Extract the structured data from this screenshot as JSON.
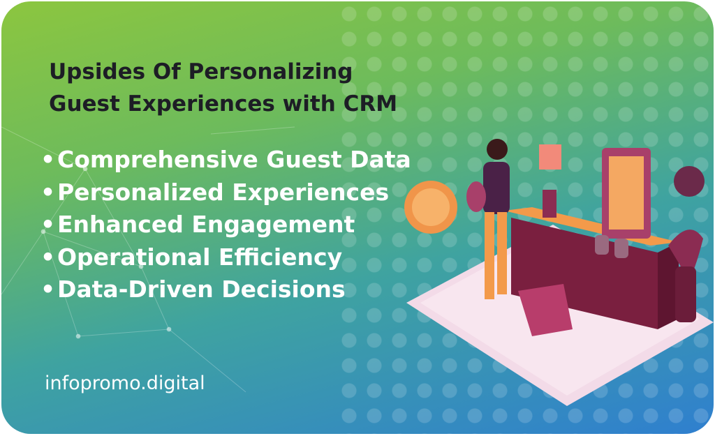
{
  "title": {
    "lines": [
      "Upsides Of Personalizing",
      "Guest Experiences with CRM"
    ]
  },
  "bullets": [
    "Comprehensive Guest Data",
    "Personalized Experiences",
    "Enhanced Engagement",
    "Operational Efficiency",
    "Data-Driven Decisions"
  ],
  "logo": "infopromo.digital"
}
